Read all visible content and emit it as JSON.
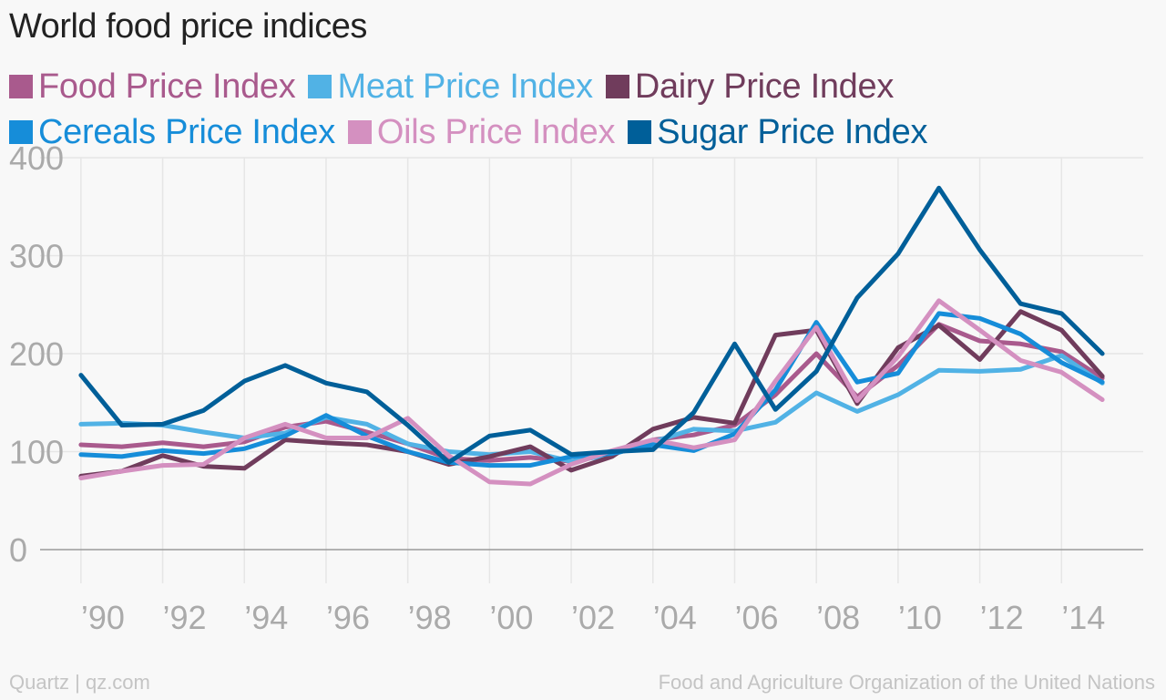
{
  "title": "World food price indices",
  "footer": {
    "left": "Quartz | qz.com",
    "right": "Food and Agriculture Organization of the United Nations"
  },
  "legend": [
    {
      "name": "Food Price Index",
      "color": "#a95a8d"
    },
    {
      "name": "Meat Price Index",
      "color": "#51b2e5"
    },
    {
      "name": "Dairy Price Index",
      "color": "#703c5c"
    },
    {
      "name": "Cereals Price Index",
      "color": "#168dd9"
    },
    {
      "name": "Oils Price Index",
      "color": "#d490c0"
    },
    {
      "name": "Sugar Price Index",
      "color": "#005f99"
    }
  ],
  "chart_data": {
    "type": "line",
    "title": "World food price indices",
    "x": [
      1990,
      1991,
      1992,
      1993,
      1994,
      1995,
      1996,
      1997,
      1998,
      1999,
      2000,
      2001,
      2002,
      2003,
      2004,
      2005,
      2006,
      2007,
      2008,
      2009,
      2010,
      2011,
      2012,
      2013,
      2014,
      2015
    ],
    "xticks": [
      1990,
      1992,
      1994,
      1996,
      1998,
      2000,
      2002,
      2004,
      2006,
      2008,
      2010,
      2012,
      2014
    ],
    "xtick_labels": [
      "’90",
      "’92",
      "’94",
      "’96",
      "’98",
      "’00",
      "’02",
      "’04",
      "’06",
      "’08",
      "’10",
      "’12",
      "’14"
    ],
    "yticks": [
      0,
      100,
      200,
      300,
      400
    ],
    "ylim": [
      0,
      400
    ],
    "xlim": [
      1989,
      2016
    ],
    "grid": true,
    "legend_position": "top",
    "series": [
      {
        "name": "Food Price Index",
        "color": "#a95a8d",
        "values": [
          107,
          105,
          109,
          105,
          110,
          125,
          131,
          120,
          108,
          93,
          91,
          94,
          90,
          98,
          112,
          117,
          127,
          158,
          200,
          156,
          188,
          230,
          213,
          210,
          202,
          175
        ]
      },
      {
        "name": "Meat Price Index",
        "color": "#51b2e5",
        "values": [
          128,
          129,
          127,
          120,
          114,
          119,
          135,
          128,
          108,
          100,
          97,
          100,
          90,
          97,
          110,
          123,
          121,
          130,
          160,
          141,
          158,
          183,
          182,
          184,
          198,
          170
        ]
      },
      {
        "name": "Dairy Price Index",
        "color": "#703c5c",
        "values": [
          75,
          80,
          96,
          85,
          83,
          112,
          109,
          107,
          100,
          87,
          95,
          105,
          81,
          95,
          123,
          135,
          129,
          219,
          224,
          149,
          206,
          229,
          194,
          243,
          224,
          177
        ]
      },
      {
        "name": "Cereals Price Index",
        "color": "#168dd9",
        "values": [
          97,
          95,
          101,
          98,
          103,
          116,
          137,
          116,
          100,
          89,
          86,
          86,
          95,
          98,
          107,
          101,
          118,
          163,
          232,
          171,
          180,
          241,
          236,
          220,
          191,
          171
        ]
      },
      {
        "name": "Oils Price Index",
        "color": "#d490c0",
        "values": [
          73,
          80,
          86,
          87,
          114,
          128,
          114,
          114,
          134,
          96,
          69,
          67,
          87,
          101,
          112,
          104,
          112,
          172,
          227,
          152,
          197,
          254,
          224,
          193,
          181,
          153
        ]
      },
      {
        "name": "Sugar Price Index",
        "color": "#005f99",
        "values": [
          178,
          127,
          128,
          142,
          172,
          188,
          170,
          161,
          127,
          89,
          116,
          122,
          97,
          100,
          102,
          140,
          210,
          143,
          182,
          257,
          302,
          369,
          306,
          251,
          241,
          200
        ]
      }
    ]
  }
}
